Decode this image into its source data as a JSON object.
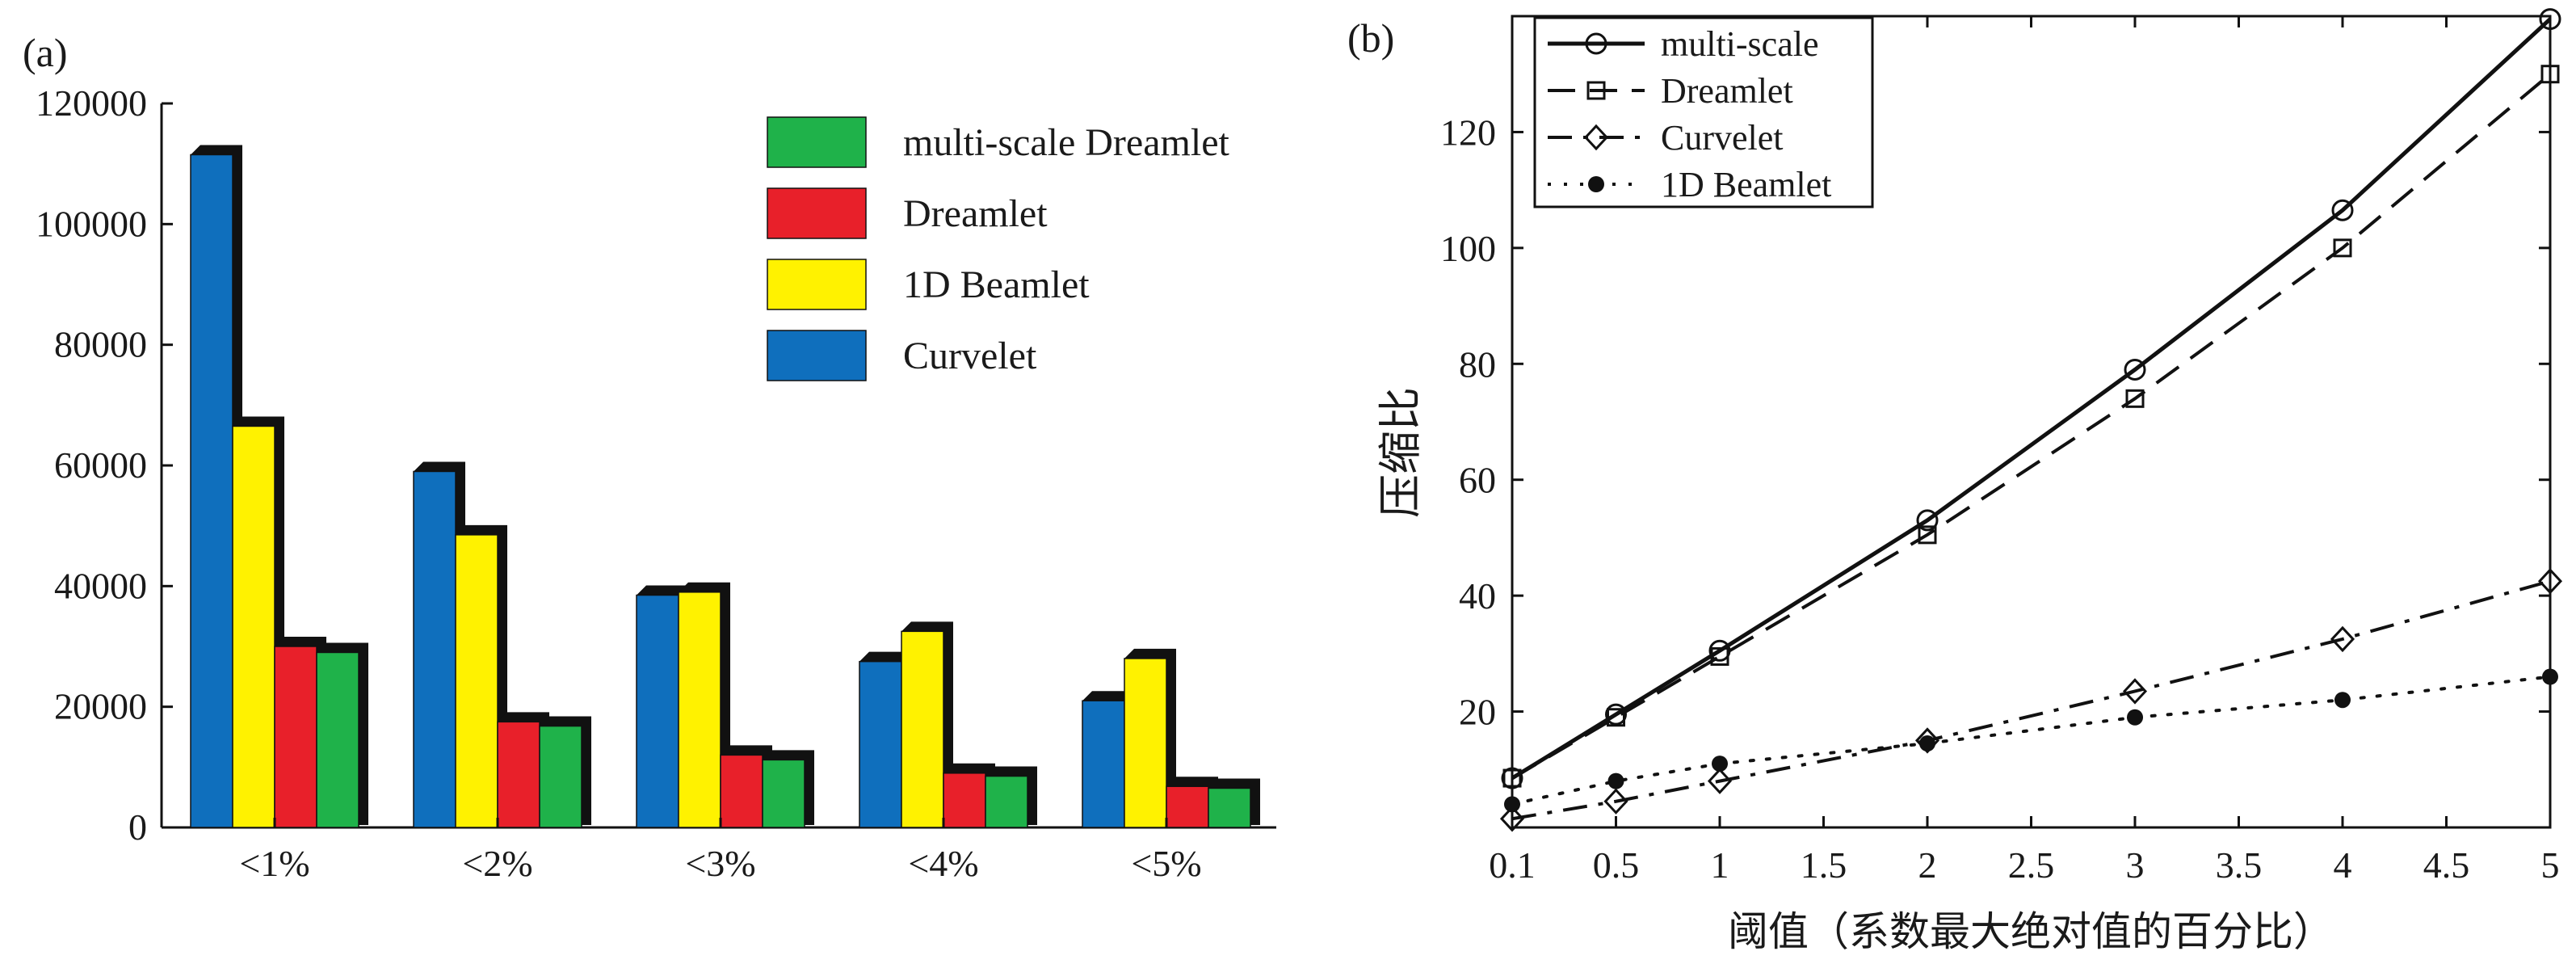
{
  "chart_data": [
    {
      "type": "bar",
      "panel_label": "(a)",
      "title": "",
      "xlabel": "",
      "ylabel": "",
      "categories": [
        "<1%",
        "<2%",
        "<3%",
        "<4%",
        "<5%"
      ],
      "ylim": [
        0,
        120000
      ],
      "yticks": [
        "0",
        "20000",
        "40000",
        "60000",
        "80000",
        "100000",
        "120000"
      ],
      "legend_position": "top-right",
      "series": [
        {
          "name": "Curvelet",
          "color": "#0f6fbd",
          "values": [
            111500,
            59000,
            38500,
            27500,
            21000
          ]
        },
        {
          "name": "1D Beamlet",
          "color": "#fff200",
          "values": [
            66500,
            48500,
            39000,
            32500,
            28000
          ]
        },
        {
          "name": "Dreamlet",
          "color": "#e8202a",
          "values": [
            30000,
            17500,
            12000,
            9000,
            6800
          ]
        },
        {
          "name": "multi-scale Dreamlet",
          "color": "#1fb24a",
          "values": [
            29000,
            16800,
            11200,
            8500,
            6500
          ]
        }
      ],
      "legend": [
        {
          "name": "multi-scale Dreamlet",
          "color": "#1fb24a"
        },
        {
          "name": "Dreamlet",
          "color": "#e8202a"
        },
        {
          "name": "1D Beamlet",
          "color": "#fff200"
        },
        {
          "name": "Curvelet",
          "color": "#0f6fbd"
        }
      ]
    },
    {
      "type": "line",
      "panel_label": "(b)",
      "title": "",
      "xlabel": "阈值（系数最大绝对值的百分比）",
      "ylabel": "压缩比",
      "x_ticks": [
        "0.1",
        "0.5",
        "1",
        "1.5",
        "2",
        "2.5",
        "3",
        "3.5",
        "4",
        "4.5",
        "5"
      ],
      "x": [
        0.1,
        0.5,
        1,
        2,
        3,
        4,
        5
      ],
      "ylim": [
        0,
        140
      ],
      "y_ticks": [
        "20",
        "40",
        "60",
        "80",
        "100",
        "120"
      ],
      "legend_position": "top-left",
      "series": [
        {
          "name": "multi-scale",
          "style": "solid",
          "marker": "circle",
          "values": [
            8.5,
            19.5,
            30.5,
            53,
            79,
            106.5,
            139.5
          ]
        },
        {
          "name": "Dreamlet",
          "style": "dashed",
          "marker": "square",
          "values": [
            8.5,
            19,
            29.5,
            50.5,
            74,
            100,
            130
          ]
        },
        {
          "name": "Curvelet",
          "style": "dashdot",
          "marker": "diamond",
          "values": [
            1.5,
            4.5,
            8,
            15,
            23.5,
            32.5,
            42.5
          ]
        },
        {
          "name": "1D Beamlet",
          "style": "dotted",
          "marker": "dot",
          "values": [
            4,
            8,
            11,
            14.5,
            19,
            22,
            26
          ]
        }
      ]
    }
  ]
}
